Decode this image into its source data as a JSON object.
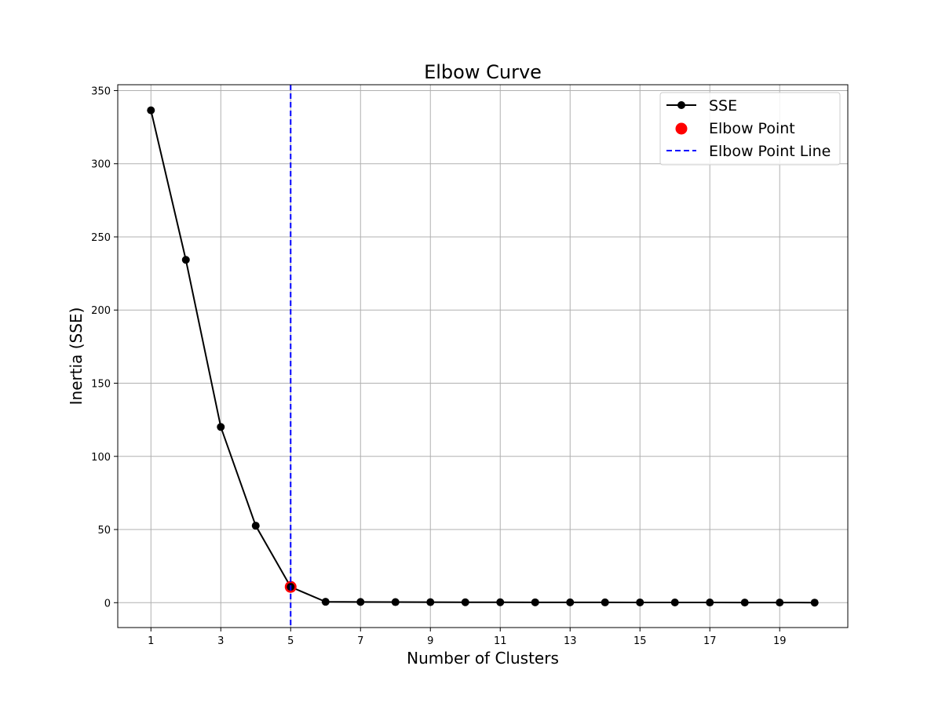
{
  "chart_data": {
    "type": "line",
    "title": "Elbow Curve",
    "xlabel": "Number of Clusters",
    "ylabel": "Inertia (SSE)",
    "xlim": [
      0.05,
      20.95
    ],
    "ylim": [
      -17,
      354
    ],
    "xticks": [
      1,
      3,
      5,
      7,
      9,
      11,
      13,
      15,
      17,
      19
    ],
    "yticks": [
      0,
      50,
      100,
      150,
      200,
      250,
      300,
      350
    ],
    "grid": true,
    "legend_position": "top-right",
    "series": [
      {
        "name": "SSE",
        "color": "#000000",
        "marker": "circle",
        "x": [
          1,
          2,
          3,
          4,
          5,
          6,
          7,
          8,
          9,
          10,
          11,
          12,
          13,
          14,
          15,
          16,
          17,
          18,
          19,
          20
        ],
        "y": [
          336.5,
          234.3,
          120.1,
          52.6,
          10.8,
          0.6,
          0.5,
          0.4,
          0.35,
          0.3,
          0.28,
          0.25,
          0.22,
          0.2,
          0.18,
          0.15,
          0.13,
          0.1,
          0.08,
          0.05
        ]
      }
    ],
    "elbow_point": {
      "name": "Elbow Point",
      "x": 5,
      "y": 10.8,
      "color": "#ff0000"
    },
    "elbow_line": {
      "name": "Elbow Point Line",
      "x": 5,
      "color": "#0000ff",
      "style": "dashed"
    }
  }
}
